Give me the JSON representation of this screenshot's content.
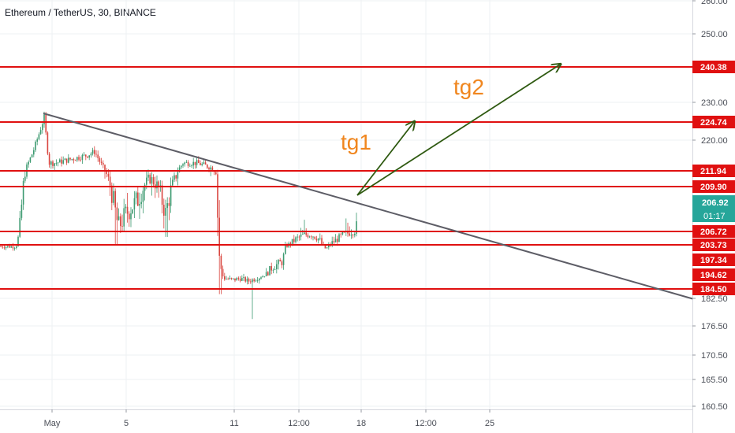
{
  "header": {
    "title": "Ethereum / TetherUS, 30, BINANCE"
  },
  "colors": {
    "level_line": "#e01010",
    "trendline": "#5d5d66",
    "arrow": "#2f5a11",
    "annotation": "#f0861e",
    "candle_up": "#3c9a70",
    "candle_down": "#d9453f",
    "price_badge": "#26a69a",
    "grid": "#eef0f3",
    "axis_text": "#4a4e57"
  },
  "chart_data": {
    "type": "candlestick",
    "symbol": "Ethereum / TetherUS",
    "interval": "30",
    "exchange": "BINANCE",
    "y_axis": {
      "range": [
        159,
        261
      ],
      "tick_labels": [
        "260.00",
        "250.00",
        "230.00",
        "220.00",
        "182.50",
        "176.50",
        "170.50",
        "165.50",
        "160.50"
      ],
      "tick_values": [
        260,
        250,
        230,
        220,
        182.5,
        176.5,
        170.5,
        165.5,
        160.5
      ]
    },
    "x_axis": {
      "tick_labels": [
        "May",
        "5",
        "11",
        "12:00",
        "18",
        "12:00",
        "25"
      ]
    },
    "horizontal_levels": [
      {
        "label": "240.38",
        "value": 240.38
      },
      {
        "label": "224.74",
        "value": 224.74
      },
      {
        "label": "211.94",
        "value": 211.94
      },
      {
        "label": "209.90",
        "value": 209.9
      },
      {
        "label": "206.72",
        "value": 206.72
      },
      {
        "label": "203.73",
        "value": 203.73
      },
      {
        "label": "197.34",
        "value": 197.34
      },
      {
        "label": "194.62",
        "value": 194.62
      },
      {
        "label": "184.50",
        "value": 184.5
      }
    ],
    "current_price": {
      "label": "206.92",
      "countdown": "01:17"
    },
    "annotations": [
      {
        "text": "tg1"
      },
      {
        "text": "tg2"
      }
    ]
  }
}
